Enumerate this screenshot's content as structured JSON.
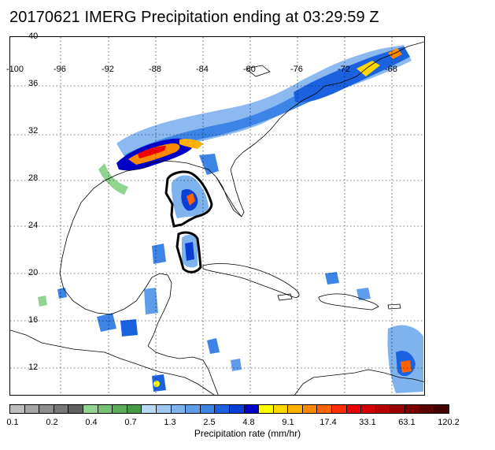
{
  "title": "20170621 IMERG Precipitation ending at 03:29:59 Z",
  "map": {
    "lon_labels": [
      "-100",
      "-96",
      "-92",
      "-88",
      "-84",
      "-80",
      "-76",
      "-72",
      "-68"
    ],
    "lat_labels": [
      "40",
      "36",
      "32",
      "28",
      "24",
      "20",
      "16",
      "12"
    ]
  },
  "colorbar": {
    "colors": [
      "#bdbdbd",
      "#a6a6a6",
      "#8e8e8e",
      "#777777",
      "#606060",
      "#8fd48f",
      "#74c174",
      "#5aac5a",
      "#469946",
      "#b7d9f5",
      "#9cc7f1",
      "#7fb3ee",
      "#5f9cea",
      "#3c84e6",
      "#1a62e0",
      "#0a3fd6",
      "#0000c8",
      "#ffff00",
      "#ffd800",
      "#ffb100",
      "#ff8a00",
      "#ff6400",
      "#ff2e00",
      "#ee0000",
      "#d20000",
      "#b50000",
      "#9a0000",
      "#7a0000",
      "#5c0000",
      "#440000"
    ],
    "labels": [
      "0.1",
      "0.2",
      "0.4",
      "0.7",
      "1.3",
      "2.5",
      "4.8",
      "9.1",
      "17.4",
      "33.1",
      "63.1",
      "120.2"
    ],
    "title": "Precipitation rate (mm/hr)"
  }
}
